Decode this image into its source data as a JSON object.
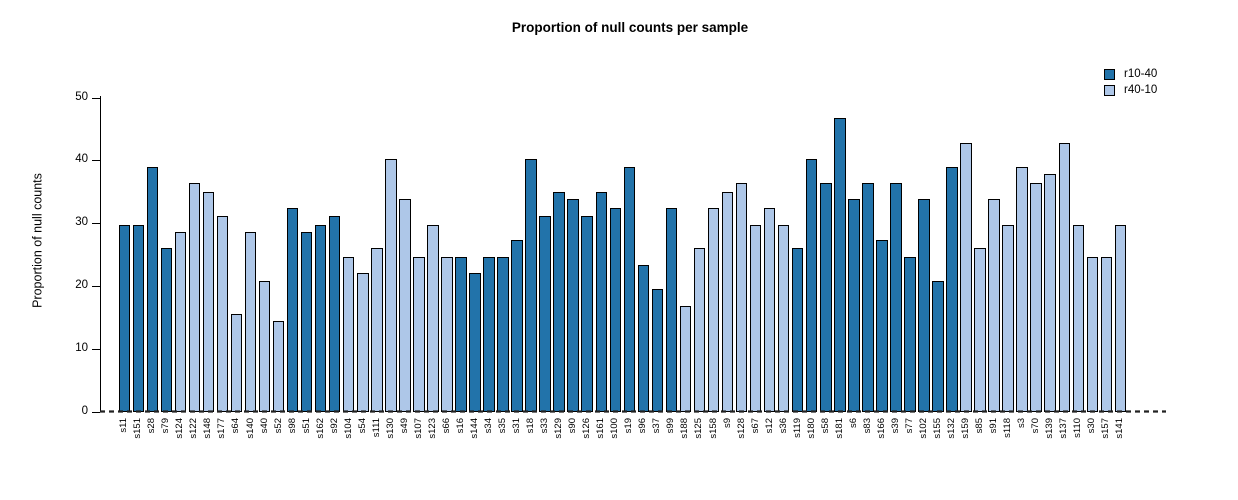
{
  "chart_data": {
    "type": "bar",
    "title": "Proportion of null counts per sample",
    "xlabel": "",
    "ylabel": "Proportion of null counts",
    "ylim": [
      0,
      50
    ],
    "yticks": [
      0,
      10,
      20,
      30,
      40,
      50
    ],
    "grid": false,
    "legend_position": "top-right",
    "zero_line_style": "dashed",
    "legend": [
      {
        "name": "r10-40",
        "color": "#2273aa"
      },
      {
        "name": "r40-10",
        "color": "#aec7e8"
      }
    ],
    "bars_columns": [
      "label",
      "value",
      "series"
    ],
    "bars": [
      [
        "s11",
        29.8,
        "r10-40"
      ],
      [
        "s151",
        29.8,
        "r10-40"
      ],
      [
        "s28",
        39.0,
        "r10-40"
      ],
      [
        "s79",
        26.0,
        "r10-40"
      ],
      [
        "s124",
        28.6,
        "r40-10"
      ],
      [
        "s122",
        36.4,
        "r40-10"
      ],
      [
        "s148",
        35.0,
        "r40-10"
      ],
      [
        "s177",
        31.2,
        "r40-10"
      ],
      [
        "s64",
        15.6,
        "r40-10"
      ],
      [
        "s140",
        28.6,
        "r40-10"
      ],
      [
        "s40",
        20.8,
        "r40-10"
      ],
      [
        "s52",
        14.4,
        "r40-10"
      ],
      [
        "s98",
        32.5,
        "r10-40"
      ],
      [
        "s51",
        28.6,
        "r10-40"
      ],
      [
        "s162",
        29.8,
        "r10-40"
      ],
      [
        "s92",
        31.2,
        "r10-40"
      ],
      [
        "s104",
        24.6,
        "r40-10"
      ],
      [
        "s54",
        22.1,
        "r40-10"
      ],
      [
        "s111",
        26.0,
        "r40-10"
      ],
      [
        "s130",
        40.2,
        "r40-10"
      ],
      [
        "s49",
        33.8,
        "r40-10"
      ],
      [
        "s107",
        24.6,
        "r40-10"
      ],
      [
        "s123",
        29.8,
        "r40-10"
      ],
      [
        "s66",
        24.6,
        "r40-10"
      ],
      [
        "s16",
        24.6,
        "r10-40"
      ],
      [
        "s144",
        22.1,
        "r10-40"
      ],
      [
        "s34",
        24.6,
        "r10-40"
      ],
      [
        "s35",
        24.6,
        "r10-40"
      ],
      [
        "s31",
        27.3,
        "r10-40"
      ],
      [
        "s18",
        40.2,
        "r10-40"
      ],
      [
        "s33",
        31.2,
        "r10-40"
      ],
      [
        "s129",
        35.0,
        "r10-40"
      ],
      [
        "s90",
        33.8,
        "r10-40"
      ],
      [
        "s126",
        31.2,
        "r10-40"
      ],
      [
        "s161",
        35.0,
        "r10-40"
      ],
      [
        "s100",
        32.5,
        "r10-40"
      ],
      [
        "s19",
        39.0,
        "r10-40"
      ],
      [
        "s96",
        23.4,
        "r10-40"
      ],
      [
        "s37",
        19.5,
        "r10-40"
      ],
      [
        "s99",
        32.5,
        "r10-40"
      ],
      [
        "s188",
        16.8,
        "r40-10"
      ],
      [
        "s125",
        26.0,
        "r40-10"
      ],
      [
        "s158",
        32.5,
        "r40-10"
      ],
      [
        "s9",
        35.0,
        "r40-10"
      ],
      [
        "s128",
        36.4,
        "r40-10"
      ],
      [
        "s67",
        29.8,
        "r40-10"
      ],
      [
        "s12",
        32.5,
        "r40-10"
      ],
      [
        "s36",
        29.8,
        "r40-10"
      ],
      [
        "s119",
        26.0,
        "r10-40"
      ],
      [
        "s180",
        40.2,
        "r10-40"
      ],
      [
        "s58",
        36.4,
        "r10-40"
      ],
      [
        "s181",
        46.8,
        "r10-40"
      ],
      [
        "s6",
        33.8,
        "r10-40"
      ],
      [
        "s83",
        36.4,
        "r10-40"
      ],
      [
        "s166",
        27.3,
        "r10-40"
      ],
      [
        "s39",
        36.4,
        "r10-40"
      ],
      [
        "s77",
        24.6,
        "r10-40"
      ],
      [
        "s102",
        33.8,
        "r10-40"
      ],
      [
        "s155",
        20.9,
        "r10-40"
      ],
      [
        "s132",
        39.0,
        "r10-40"
      ],
      [
        "s159",
        42.8,
        "r40-10"
      ],
      [
        "s85",
        26.0,
        "r40-10"
      ],
      [
        "s91",
        33.8,
        "r40-10"
      ],
      [
        "s118",
        29.8,
        "r40-10"
      ],
      [
        "s3",
        39.0,
        "r40-10"
      ],
      [
        "s70",
        36.4,
        "r40-10"
      ],
      [
        "s139",
        37.8,
        "r40-10"
      ],
      [
        "s137",
        42.8,
        "r40-10"
      ],
      [
        "s110",
        29.8,
        "r40-10"
      ],
      [
        "s30",
        24.6,
        "r40-10"
      ],
      [
        "s157",
        24.6,
        "r40-10"
      ],
      [
        "s141",
        29.8,
        "r40-10"
      ]
    ]
  }
}
